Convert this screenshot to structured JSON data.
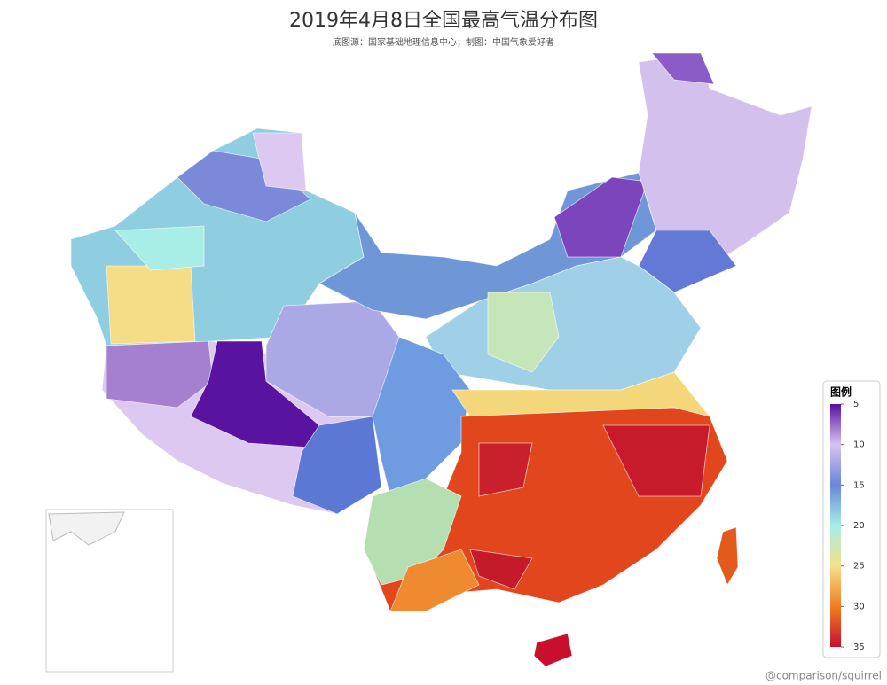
{
  "title": "2019年4月8日全国最高气温分布图",
  "subtitle": "底图源：国家基础地理信息中心；制图：中国气象爱好者",
  "legend": {
    "title": "图例",
    "range": [
      5,
      35
    ],
    "ticks": [
      5,
      10,
      15,
      20,
      25,
      30,
      35
    ],
    "colors": [
      "#5a0fa0",
      "#d9c2ee",
      "#6a86d8",
      "#a8eee6",
      "#f5e08a",
      "#f07e20",
      "#c8102e"
    ]
  },
  "credit": "@comparison/squirrel"
}
